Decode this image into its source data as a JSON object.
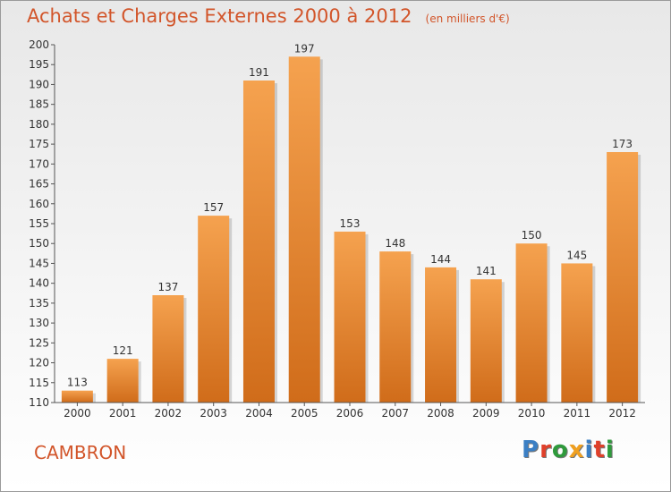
{
  "header": {
    "title": "Achats et Charges Externes 2000 à 2012",
    "unit": "(en milliers d'€)"
  },
  "footer": {
    "town": "CAMBRON",
    "logo": "Proxiti"
  },
  "colors": {
    "accent": "#d2552a",
    "bar_top": "#f5a24f",
    "bar_bottom": "#d06c1a",
    "logo_letters": [
      "#3b7fc4",
      "#e0402a",
      "#2f9a3c",
      "#f0a020",
      "#3b7fc4",
      "#e0402a",
      "#2f9a3c"
    ]
  },
  "chart_data": {
    "type": "bar",
    "title": "Achats et Charges Externes 2000 à 2012",
    "subtitle": "(en milliers d'€)",
    "categories": [
      "2000",
      "2001",
      "2002",
      "2003",
      "2004",
      "2005",
      "2006",
      "2007",
      "2008",
      "2009",
      "2010",
      "2011",
      "2012"
    ],
    "values": [
      113,
      121,
      137,
      157,
      191,
      197,
      153,
      148,
      144,
      141,
      150,
      145,
      173
    ],
    "ylim": [
      110,
      200
    ],
    "ytick_step": 5,
    "grid": false,
    "data_labels": true
  }
}
